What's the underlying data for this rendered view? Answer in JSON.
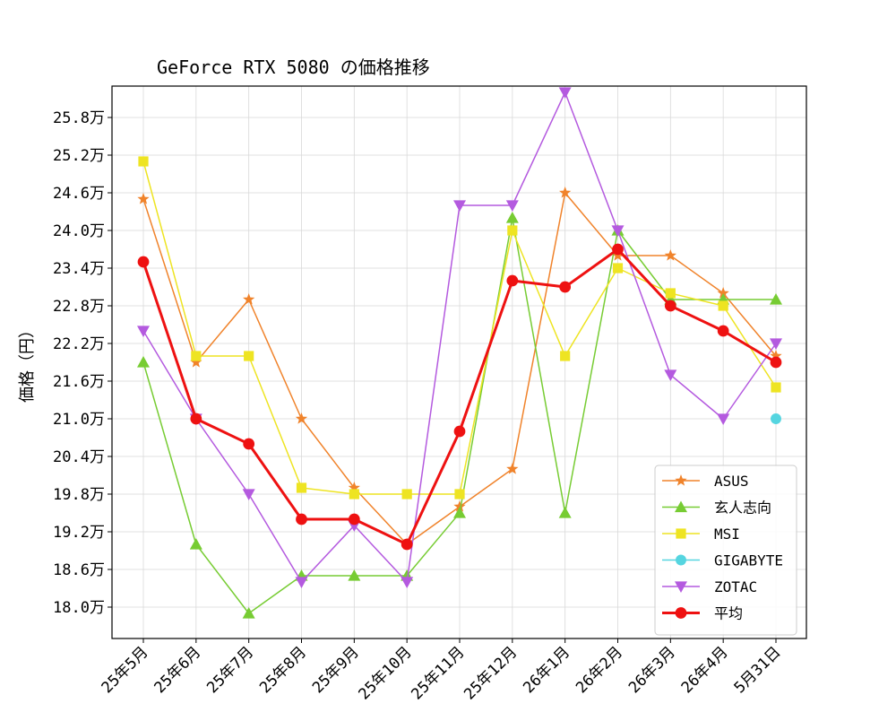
{
  "chart_data": {
    "type": "line",
    "title": "GeForce RTX 5080 の価格推移",
    "xlabel": "",
    "ylabel": "価格（円）",
    "categories": [
      "25年5月",
      "25年6月",
      "25年7月",
      "25年8月",
      "25年9月",
      "25年10月",
      "25年11月",
      "25年12月",
      "26年1月",
      "26年2月",
      "26年3月",
      "26年4月",
      "5月31日"
    ],
    "yticks": [
      18.0,
      18.6,
      19.2,
      19.8,
      20.4,
      21.0,
      21.6,
      22.2,
      22.8,
      23.4,
      24.0,
      24.6,
      25.2,
      25.8
    ],
    "ytick_labels": [
      "18.0万",
      "18.6万",
      "19.2万",
      "19.8万",
      "20.4万",
      "21.0万",
      "21.6万",
      "22.2万",
      "22.8万",
      "23.4万",
      "24.0万",
      "24.6万",
      "25.2万",
      "25.8万"
    ],
    "ylim": [
      17.5,
      26.3
    ],
    "grid": true,
    "legend_position": "lower-right",
    "series": [
      {
        "name": "ASUS",
        "color": "#f0832b",
        "marker": "star",
        "values": [
          24.5,
          21.9,
          22.9,
          21.0,
          19.9,
          19.0,
          19.6,
          20.2,
          24.6,
          23.6,
          23.6,
          23.0,
          22.0
        ]
      },
      {
        "name": "玄人志向",
        "color": "#77cc33",
        "marker": "triangle-up",
        "values": [
          21.9,
          19.0,
          17.9,
          18.5,
          18.5,
          18.5,
          19.5,
          24.2,
          19.5,
          24.0,
          22.9,
          22.9,
          22.9
        ]
      },
      {
        "name": "MSI",
        "color": "#eee422",
        "marker": "square",
        "values": [
          25.1,
          22.0,
          22.0,
          19.9,
          19.8,
          19.8,
          19.8,
          24.0,
          22.0,
          23.4,
          23.0,
          22.8,
          21.5
        ]
      },
      {
        "name": "GIGABYTE",
        "color": "#55d5e0",
        "marker": "circle",
        "values": [
          null,
          null,
          null,
          null,
          null,
          null,
          null,
          null,
          null,
          null,
          null,
          null,
          21.0
        ]
      },
      {
        "name": "ZOTAC",
        "color": "#b45adf",
        "marker": "triangle-down",
        "values": [
          22.4,
          21.0,
          19.8,
          18.4,
          19.3,
          18.4,
          24.4,
          24.4,
          26.2,
          24.0,
          21.7,
          21.0,
          22.2
        ]
      },
      {
        "name": "平均",
        "color": "#ee1111",
        "marker": "circle",
        "bold": true,
        "values": [
          23.5,
          21.0,
          20.6,
          19.4,
          19.4,
          19.0,
          20.8,
          23.2,
          23.1,
          23.7,
          22.8,
          22.4,
          21.9
        ]
      }
    ]
  }
}
